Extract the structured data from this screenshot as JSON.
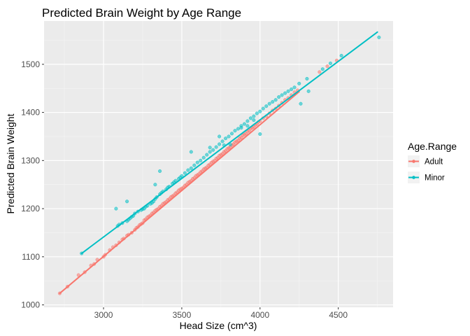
{
  "chart_data": {
    "type": "scatter",
    "title": "Predicted Brain Weight by Age Range",
    "xlabel": "Head Size (cm^3)",
    "ylabel": "Predicted Brain Weight",
    "xlim": [
      2620,
      4850
    ],
    "ylim": [
      995,
      1590
    ],
    "xticks": [
      3000,
      3500,
      4000,
      4500
    ],
    "yticks": [
      1000,
      1100,
      1200,
      1300,
      1400,
      1500
    ],
    "grid": true,
    "legend": {
      "title": "Age.Range",
      "position": "right"
    },
    "series": [
      {
        "name": "Adult",
        "color": "#F8766D",
        "line": {
          "x": [
            2720,
            4250
          ],
          "y": [
            1024,
            1443
          ]
        },
        "x": [
          2720,
          2770,
          2840,
          2880,
          2920,
          2940,
          2960,
          3000,
          3010,
          3040,
          3060,
          3080,
          3100,
          3120,
          3130,
          3150,
          3160,
          3180,
          3200,
          3210,
          3220,
          3230,
          3240,
          3250,
          3260,
          3270,
          3280,
          3290,
          3300,
          3310,
          3320,
          3330,
          3340,
          3350,
          3360,
          3370,
          3380,
          3390,
          3400,
          3410,
          3420,
          3430,
          3440,
          3450,
          3460,
          3470,
          3480,
          3490,
          3500,
          3510,
          3520,
          3530,
          3540,
          3550,
          3560,
          3570,
          3580,
          3590,
          3600,
          3610,
          3620,
          3630,
          3640,
          3650,
          3660,
          3670,
          3680,
          3690,
          3700,
          3710,
          3720,
          3730,
          3740,
          3750,
          3760,
          3770,
          3780,
          3790,
          3800,
          3810,
          3820,
          3830,
          3840,
          3850,
          3860,
          3870,
          3880,
          3890,
          3900,
          3910,
          3920,
          3930,
          3940,
          3950,
          3960,
          3970,
          3980,
          3990,
          4000,
          4020,
          4040,
          4060,
          4080,
          4100,
          4120,
          4140,
          4160,
          4180,
          4200,
          4220,
          4240,
          4380,
          4430,
          4490
        ],
        "y": [
          1024,
          1038,
          1062,
          1068,
          1082,
          1085,
          1094,
          1100,
          1104,
          1114,
          1120,
          1124,
          1130,
          1136,
          1138,
          1144,
          1146,
          1150,
          1156,
          1160,
          1162,
          1166,
          1168,
          1170,
          1176,
          1178,
          1182,
          1184,
          1186,
          1190,
          1192,
          1196,
          1198,
          1200,
          1204,
          1206,
          1210,
          1212,
          1214,
          1218,
          1220,
          1224,
          1226,
          1228,
          1232,
          1234,
          1238,
          1240,
          1242,
          1244,
          1248,
          1250,
          1254,
          1256,
          1258,
          1262,
          1264,
          1268,
          1270,
          1272,
          1276,
          1278,
          1282,
          1284,
          1286,
          1290,
          1292,
          1296,
          1298,
          1300,
          1304,
          1306,
          1310,
          1312,
          1314,
          1318,
          1320,
          1324,
          1326,
          1328,
          1332,
          1334,
          1338,
          1340,
          1342,
          1346,
          1348,
          1352,
          1354,
          1356,
          1360,
          1362,
          1366,
          1368,
          1370,
          1374,
          1376,
          1380,
          1382,
          1388,
          1392,
          1398,
          1404,
          1408,
          1414,
          1420,
          1426,
          1430,
          1436,
          1442,
          1446,
          1484,
          1496,
          1508
        ]
      },
      {
        "name": "Minor",
        "color": "#00BFC4",
        "line": {
          "x": [
            2860,
            4750
          ],
          "y": [
            1107,
            1567
          ]
        },
        "x": [
          2860,
          3090,
          3100,
          3120,
          3150,
          3160,
          3170,
          3180,
          3190,
          3200,
          3220,
          3240,
          3250,
          3260,
          3270,
          3280,
          3300,
          3310,
          3320,
          3330,
          3340,
          3360,
          3370,
          3380,
          3400,
          3410,
          3420,
          3440,
          3450,
          3460,
          3480,
          3490,
          3500,
          3520,
          3540,
          3560,
          3580,
          3600,
          3620,
          3640,
          3660,
          3680,
          3700,
          3720,
          3740,
          3760,
          3780,
          3800,
          3820,
          3840,
          3860,
          3880,
          3900,
          3920,
          3940,
          3960,
          3980,
          4000,
          4020,
          4040,
          4060,
          4080,
          4100,
          4120,
          4140,
          4160,
          4180,
          4200,
          4220,
          4250,
          4300,
          4400,
          4450,
          4520,
          4760,
          3080,
          3150,
          3330,
          3360,
          3740,
          3770,
          3880,
          3920,
          3960,
          4000,
          3560,
          3680,
          3810,
          4260,
          4310
        ],
        "y": [
          1107,
          1164,
          1167,
          1170,
          1174,
          1177,
          1180,
          1183,
          1185,
          1190,
          1194,
          1197,
          1199,
          1200,
          1204,
          1206,
          1210,
          1212,
          1215,
          1220,
          1224,
          1230,
          1233,
          1236,
          1240,
          1244,
          1246,
          1252,
          1255,
          1258,
          1262,
          1265,
          1268,
          1274,
          1280,
          1284,
          1290,
          1296,
          1300,
          1306,
          1312,
          1318,
          1322,
          1328,
          1334,
          1340,
          1346,
          1350,
          1356,
          1362,
          1366,
          1372,
          1376,
          1382,
          1388,
          1392,
          1398,
          1402,
          1408,
          1413,
          1418,
          1422,
          1426,
          1432,
          1436,
          1440,
          1444,
          1448,
          1452,
          1460,
          1470,
          1490,
          1502,
          1518,
          1556,
          1200,
          1215,
          1250,
          1278,
          1350,
          1332,
          1368,
          1372,
          1384,
          1355,
          1318,
          1327,
          1333,
          1418,
          1444
        ]
      }
    ]
  }
}
